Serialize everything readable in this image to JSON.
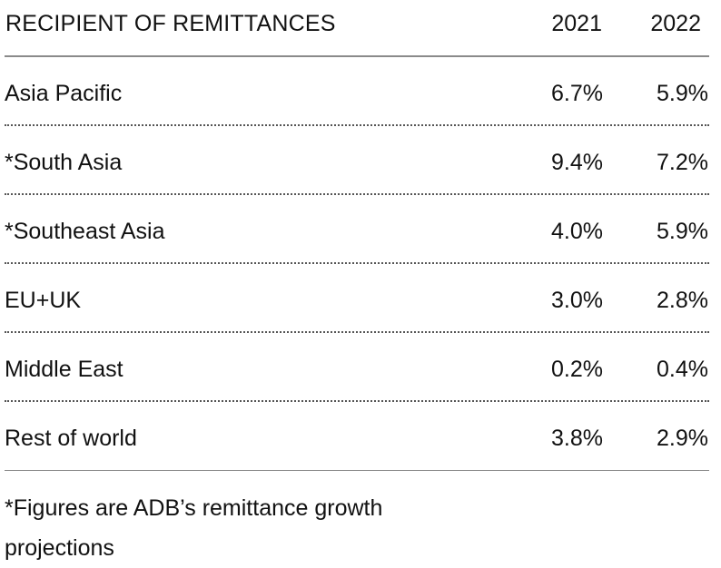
{
  "chart_data": {
    "type": "table",
    "columns": [
      "RECIPIENT OF REMITTANCES",
      "2021",
      "2022"
    ],
    "rows": [
      {
        "region": "Asia Pacific",
        "y2021": "6.7%",
        "y2022": "5.9%"
      },
      {
        "region": "*South Asia",
        "y2021": "9.4%",
        "y2022": "7.2%"
      },
      {
        "region": "*Southeast Asia",
        "y2021": "4.0%",
        "y2022": "5.9%"
      },
      {
        "region": "EU+UK",
        "y2021": "3.0%",
        "y2022": "2.8%"
      },
      {
        "region": "Middle East",
        "y2021": "0.2%",
        "y2022": "0.4%"
      },
      {
        "region": "Rest of world",
        "y2021": "3.8%",
        "y2022": "2.9%"
      }
    ],
    "footnote": "*Figures are ADB’s remittance growth projections"
  }
}
